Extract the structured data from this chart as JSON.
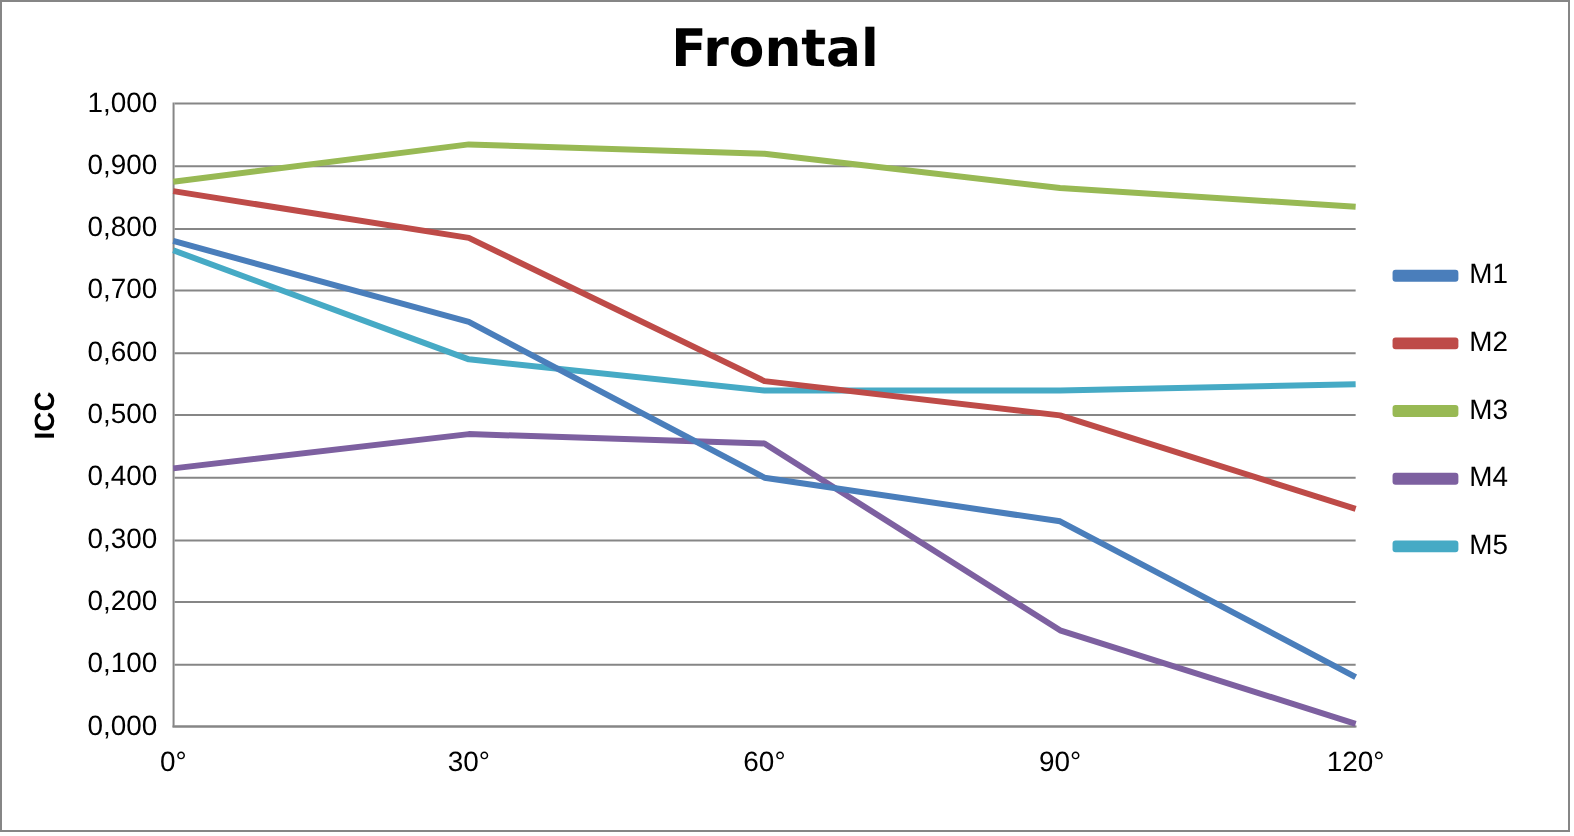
{
  "chart_data": {
    "type": "line",
    "title": "Frontal",
    "ylabel": "ICC",
    "categories": [
      "0°",
      "30°",
      "60°",
      "90°",
      "120°"
    ],
    "series": [
      {
        "name": "M1",
        "color": "#4a7ebb",
        "values": [
          0.78,
          0.65,
          0.4,
          0.33,
          0.08
        ]
      },
      {
        "name": "M2",
        "color": "#be4b48",
        "values": [
          0.86,
          0.785,
          0.555,
          0.5,
          0.35
        ]
      },
      {
        "name": "M3",
        "color": "#98b954",
        "values": [
          0.875,
          0.935,
          0.92,
          0.865,
          0.835
        ]
      },
      {
        "name": "M4",
        "color": "#7d60a0",
        "values": [
          0.415,
          0.47,
          0.455,
          0.155,
          0.005
        ]
      },
      {
        "name": "M5",
        "color": "#46aac5",
        "values": [
          0.765,
          0.59,
          0.54,
          0.54,
          0.55
        ]
      }
    ],
    "ylim": [
      0,
      1
    ],
    "yticks": [
      {
        "value": 0,
        "label": "0,000"
      },
      {
        "value": 0.1,
        "label": "0,100"
      },
      {
        "value": 0.2,
        "label": "0,200"
      },
      {
        "value": 0.3,
        "label": "0,300"
      },
      {
        "value": 0.4,
        "label": "0,400"
      },
      {
        "value": 0.5,
        "label": "0,500"
      },
      {
        "value": 0.6,
        "label": "0,600"
      },
      {
        "value": 0.7,
        "label": "0,700"
      },
      {
        "value": 0.8,
        "label": "0,800"
      },
      {
        "value": 0.9,
        "label": "0,900"
      },
      {
        "value": 1,
        "label": "1,000"
      }
    ],
    "grid": "y",
    "legend": "right",
    "marker": "none",
    "line_style": "solid"
  }
}
